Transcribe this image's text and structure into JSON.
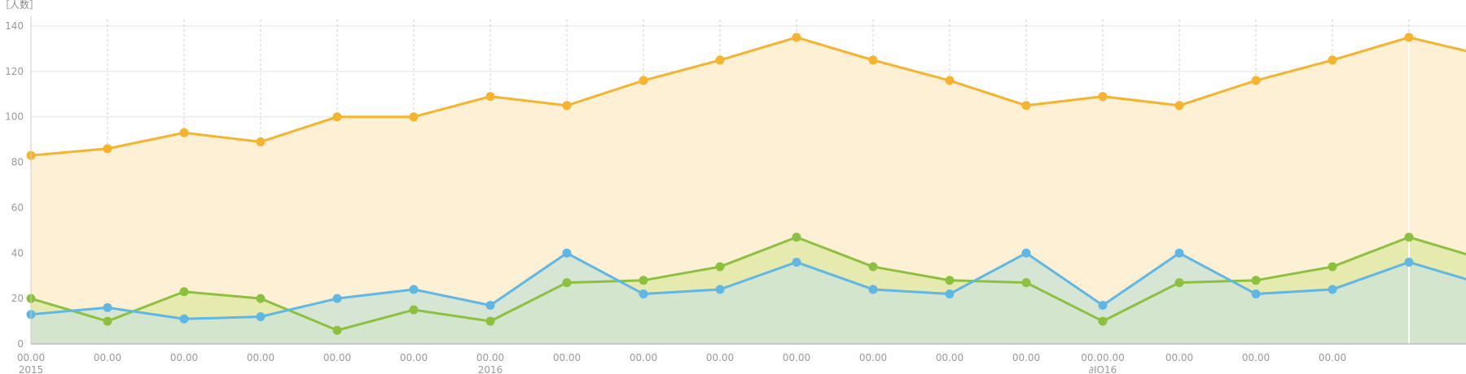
{
  "chart_data": {
    "type": "area",
    "ylabel": "［人数］",
    "ylim": [
      0,
      140
    ],
    "yticks": [
      0,
      20,
      40,
      60,
      80,
      100,
      120,
      140
    ],
    "x_labels": [
      {
        "label": "00.00",
        "year": "2015"
      },
      {
        "label": "00.00",
        "year": ""
      },
      {
        "label": "00.00",
        "year": ""
      },
      {
        "label": "00.00",
        "year": ""
      },
      {
        "label": "00.00",
        "year": ""
      },
      {
        "label": "00.00",
        "year": ""
      },
      {
        "label": "00.00",
        "year": "2016"
      },
      {
        "label": "00.00",
        "year": ""
      },
      {
        "label": "00.00",
        "year": ""
      },
      {
        "label": "00.00",
        "year": ""
      },
      {
        "label": "00.00",
        "year": ""
      },
      {
        "label": "00.00",
        "year": ""
      },
      {
        "label": "00.00",
        "year": ""
      },
      {
        "label": "00.00",
        "year": ""
      },
      {
        "label": "00.00.00",
        "year": "∂IO16"
      },
      {
        "label": "00.00",
        "year": ""
      },
      {
        "label": "00.00",
        "year": ""
      },
      {
        "label": "00.00",
        "year": ""
      },
      {
        "label": "",
        "year": ""
      },
      {
        "label": "",
        "year": ""
      }
    ],
    "highlight_index": 18,
    "grid": true,
    "series": [
      {
        "color": "#f5b32f",
        "fill": "#fdf0d5",
        "values": [
          83,
          86,
          93,
          89,
          100,
          100,
          109,
          105,
          116,
          125,
          135,
          125,
          116,
          105,
          109,
          105,
          116,
          125,
          135,
          127
        ]
      },
      {
        "color": "#8cc13f",
        "fill": "#e3e9a8",
        "values": [
          20,
          10,
          23,
          20,
          6,
          15,
          10,
          27,
          28,
          34,
          47,
          34,
          28,
          27,
          10,
          27,
          28,
          34,
          47,
          37
        ]
      },
      {
        "color": "#5fb7e6",
        "fill": "#d0e4d3",
        "values": [
          13,
          16,
          11,
          12,
          20,
          24,
          17,
          40,
          22,
          24,
          36,
          24,
          22,
          40,
          17,
          40,
          22,
          24,
          36,
          26
        ]
      }
    ]
  }
}
